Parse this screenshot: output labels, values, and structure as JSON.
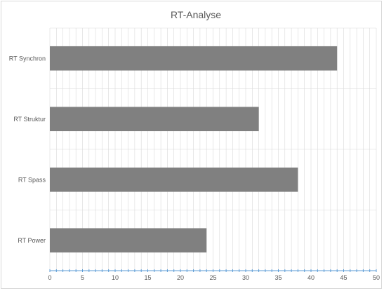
{
  "chart_data": {
    "type": "bar",
    "orientation": "horizontal",
    "title": "RT-Analyse",
    "categories": [
      "RT Synchron",
      "RT Struktur",
      "RT Spass",
      "RT Power"
    ],
    "values": [
      44,
      32,
      38,
      24
    ],
    "xlim": [
      0,
      50
    ],
    "xticks": [
      0,
      5,
      10,
      15,
      20,
      25,
      30,
      35,
      40,
      45,
      50
    ],
    "grid": true,
    "legend": "none",
    "colors": {
      "bar": "#808080",
      "grid": "#d9d9d9",
      "axis": "#5b9bd5",
      "text": "#595959"
    }
  }
}
